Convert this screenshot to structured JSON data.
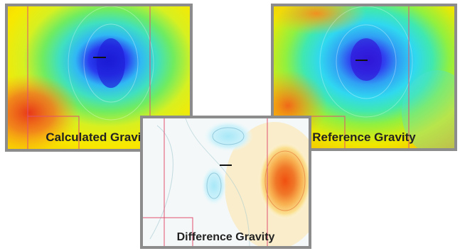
{
  "panels": {
    "calculated": {
      "label": "Calculated Gravity"
    },
    "reference": {
      "label": "Reference Gravity"
    },
    "difference": {
      "label": "Difference Gravity"
    }
  },
  "colors": {
    "frame": "#8c8c8c",
    "low": "#2020e0",
    "mid_low": "#30c8f0",
    "mid": "#40e080",
    "high": "#f0f000",
    "very_high": "#e83010",
    "grid_line": "#e05070"
  }
}
